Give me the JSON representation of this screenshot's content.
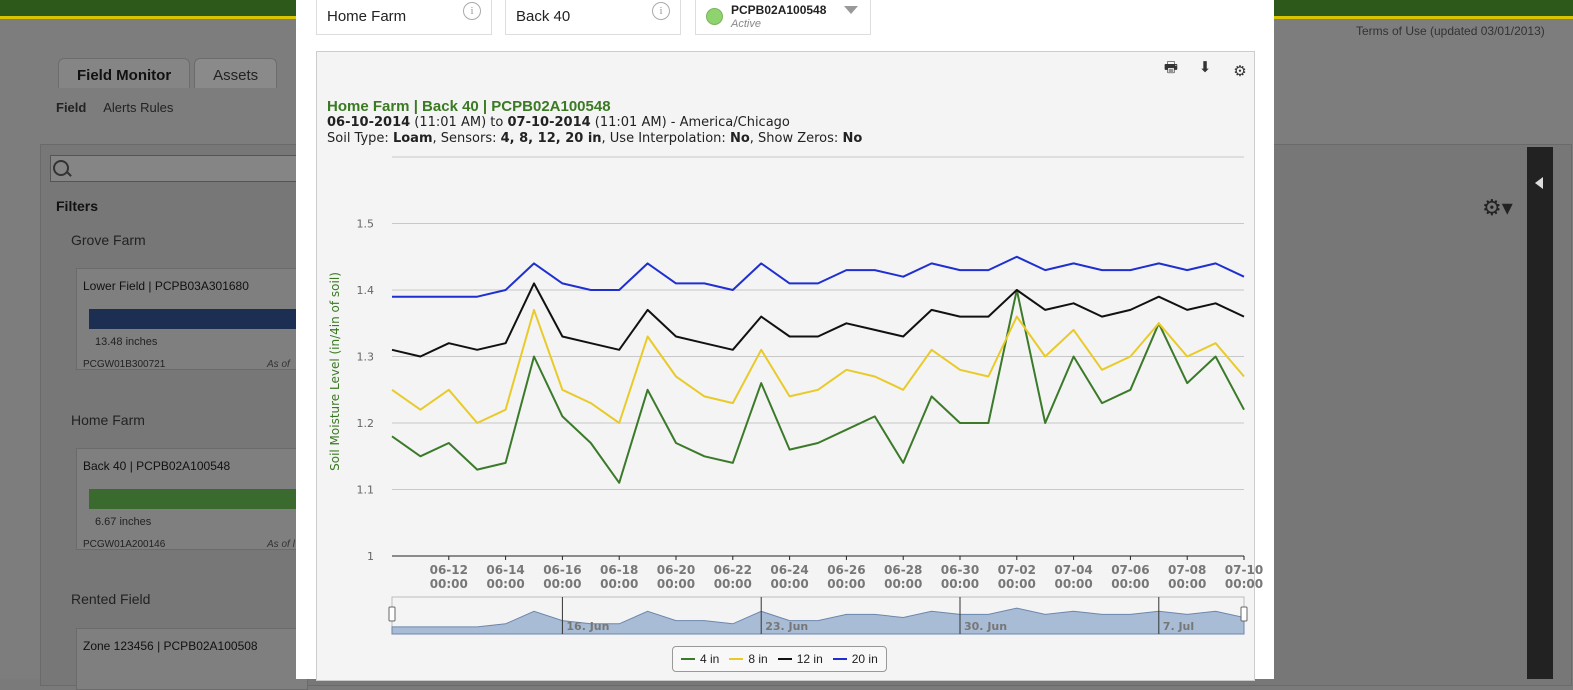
{
  "page": {
    "terms": "Terms of Use (updated 03/01/2013)",
    "tabs": [
      {
        "label": "Field Monitor"
      },
      {
        "label": "Assets"
      }
    ],
    "subnav": [
      {
        "label": "Field"
      },
      {
        "label": "Alerts Rules"
      }
    ],
    "filters_label": "Filters",
    "farms": [
      {
        "name": "Grove Farm",
        "card": {
          "name": "Lower Field | PCPB03A301680",
          "inches": "13.48 inches",
          "id": "PCGW01B300721",
          "asof": "As of",
          "bar_color": "#1c2e52"
        }
      },
      {
        "name": "Home Farm",
        "card": {
          "name": "Back 40 | PCPB02A100548",
          "inches": "6.67 inches",
          "id": "PCGW01A200146",
          "asof": "As of l",
          "bar_color": "#3b6a2e"
        }
      },
      {
        "name": "Rented Field",
        "card": {
          "name": "Zone 123456 | PCPB02A100508"
        }
      }
    ]
  },
  "modal": {
    "farm_select": "Home Farm",
    "field_select": "Back 40",
    "device": {
      "id": "PCPB02A100548",
      "status": "Active"
    },
    "chart_header": {
      "title": "Home Farm | Back 40 | PCPB02A100548",
      "start_date": "06-10-2014",
      "start_time": "(11:01 AM)",
      "to": "to",
      "end_date": "07-10-2014",
      "end_time": "(11:01 AM)",
      "tz": "- America/Chicago",
      "soil_type_label": "Soil Type:",
      "soil_type": "Loam",
      "sensors_label": ", Sensors:",
      "sensors": "4, 8, 12, 20 in",
      "interp_label": ", Use Interpolation:",
      "interp": "No",
      "zeros_label": ", Show Zeros:",
      "zeros": "No"
    }
  },
  "chart_data": {
    "type": "line",
    "ylabel": "Soil Moisture Level (in/4in of soil)",
    "ylim": [
      1,
      1.6
    ],
    "yticks": [
      "1",
      "1.1",
      "1.2",
      "1.3",
      "1.4",
      "1.5"
    ],
    "xticks": [
      {
        "date": "06-12",
        "time": "00:00"
      },
      {
        "date": "06-14",
        "time": "00:00"
      },
      {
        "date": "06-16",
        "time": "00:00"
      },
      {
        "date": "06-18",
        "time": "00:00"
      },
      {
        "date": "06-20",
        "time": "00:00"
      },
      {
        "date": "06-22",
        "time": "00:00"
      },
      {
        "date": "06-24",
        "time": "00:00"
      },
      {
        "date": "06-26",
        "time": "00:00"
      },
      {
        "date": "06-28",
        "time": "00:00"
      },
      {
        "date": "06-30",
        "time": "00:00"
      },
      {
        "date": "07-02",
        "time": "00:00"
      },
      {
        "date": "07-04",
        "time": "00:00"
      },
      {
        "date": "07-06",
        "time": "00:00"
      },
      {
        "date": "07-08",
        "time": "00:00"
      },
      {
        "date": "07-10",
        "time": "00:00"
      }
    ],
    "navigator_labels": [
      "16. Jun",
      "23. Jun",
      "30. Jun",
      "7. Jul"
    ],
    "x": [
      "06-10",
      "06-11",
      "06-12",
      "06-13",
      "06-14",
      "06-15",
      "06-16",
      "06-17",
      "06-18",
      "06-19",
      "06-20",
      "06-21",
      "06-22",
      "06-23",
      "06-24",
      "06-25",
      "06-26",
      "06-27",
      "06-28",
      "06-29",
      "06-30",
      "07-01",
      "07-02",
      "07-03",
      "07-04",
      "07-05",
      "07-06",
      "07-07",
      "07-08",
      "07-09",
      "07-10"
    ],
    "series": [
      {
        "name": "4 in",
        "color": "#3b7a2a",
        "values": [
          1.18,
          1.15,
          1.17,
          1.13,
          1.14,
          1.3,
          1.21,
          1.17,
          1.11,
          1.25,
          1.17,
          1.15,
          1.14,
          1.26,
          1.16,
          1.17,
          1.19,
          1.21,
          1.14,
          1.24,
          1.2,
          1.2,
          1.4,
          1.2,
          1.3,
          1.23,
          1.25,
          1.35,
          1.26,
          1.3,
          1.22
        ]
      },
      {
        "name": "8 in",
        "color": "#e8cb2a",
        "values": [
          1.25,
          1.22,
          1.25,
          1.2,
          1.22,
          1.37,
          1.25,
          1.23,
          1.2,
          1.33,
          1.27,
          1.24,
          1.23,
          1.31,
          1.24,
          1.25,
          1.28,
          1.27,
          1.25,
          1.31,
          1.28,
          1.27,
          1.36,
          1.3,
          1.34,
          1.28,
          1.3,
          1.35,
          1.3,
          1.32,
          1.27
        ]
      },
      {
        "name": "12 in",
        "color": "#111111",
        "values": [
          1.31,
          1.3,
          1.32,
          1.31,
          1.32,
          1.41,
          1.33,
          1.32,
          1.31,
          1.37,
          1.33,
          1.32,
          1.31,
          1.36,
          1.33,
          1.33,
          1.35,
          1.34,
          1.33,
          1.37,
          1.36,
          1.36,
          1.4,
          1.37,
          1.38,
          1.36,
          1.37,
          1.39,
          1.37,
          1.38,
          1.36
        ]
      },
      {
        "name": "20 in",
        "color": "#1f2fd0",
        "values": [
          1.39,
          1.39,
          1.39,
          1.39,
          1.4,
          1.44,
          1.41,
          1.4,
          1.4,
          1.44,
          1.41,
          1.41,
          1.4,
          1.44,
          1.41,
          1.41,
          1.43,
          1.43,
          1.42,
          1.44,
          1.43,
          1.43,
          1.45,
          1.43,
          1.44,
          1.43,
          1.43,
          1.44,
          1.43,
          1.44,
          1.42
        ]
      }
    ],
    "grid": true,
    "legend": "bottom"
  }
}
